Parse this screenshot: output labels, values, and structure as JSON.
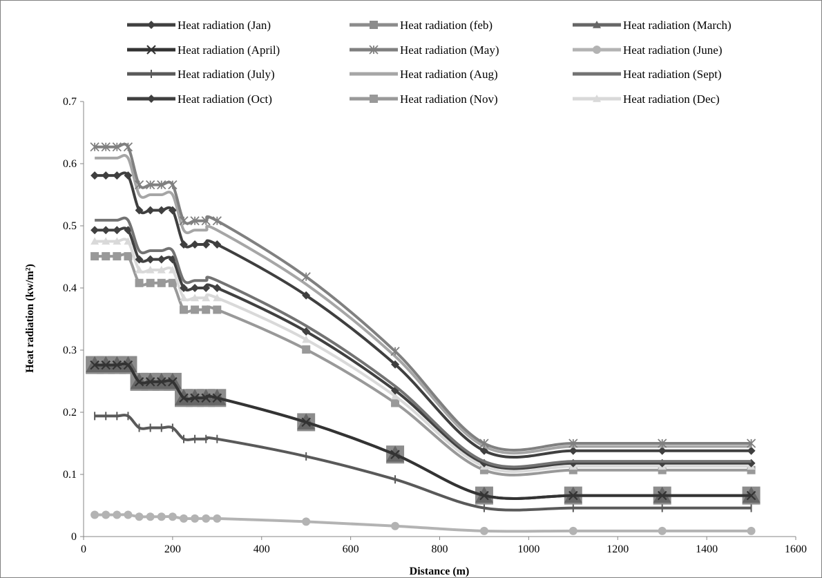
{
  "chart_data": {
    "type": "line",
    "title": "",
    "xlabel": "Distance (m)",
    "ylabel": "Heat radiation (kw/m²)",
    "xlim": [
      0,
      1600
    ],
    "ylim": [
      0,
      0.7
    ],
    "x_ticks": [
      0,
      200,
      400,
      600,
      800,
      1000,
      1200,
      1400,
      1600
    ],
    "y_ticks": [
      0,
      0.1,
      0.2,
      0.3,
      0.4,
      0.5,
      0.6,
      0.7
    ],
    "grid": false,
    "legend_position": "top",
    "x": [
      25,
      50,
      75,
      100,
      125,
      150,
      175,
      200,
      225,
      250,
      275,
      300,
      500,
      700,
      900,
      1100,
      1300,
      1500
    ],
    "series": [
      {
        "name": "Heat radiation (Jan)",
        "color": "#404040",
        "marker": "diamond",
        "values": [
          0.493,
          0.493,
          0.493,
          0.493,
          0.446,
          0.446,
          0.446,
          0.446,
          0.4,
          0.4,
          0.4,
          0.4,
          0.33,
          0.235,
          0.118,
          0.118,
          0.118,
          0.118
        ]
      },
      {
        "name": "Heat radiation (feb)",
        "color": "#8c8c8c",
        "marker": "square",
        "values": [
          0.276,
          0.276,
          0.276,
          0.276,
          0.249,
          0.249,
          0.249,
          0.249,
          0.223,
          0.223,
          0.223,
          0.223,
          0.184,
          0.132,
          0.066,
          0.066,
          0.066,
          0.066
        ]
      },
      {
        "name": "Heat radiation (March)",
        "color": "#666666",
        "marker": "triangle",
        "values": [
          0.276,
          0.276,
          0.276,
          0.276,
          0.249,
          0.249,
          0.249,
          0.249,
          0.223,
          0.223,
          0.223,
          0.223,
          0.184,
          0.132,
          0.066,
          0.066,
          0.066,
          0.066
        ]
      },
      {
        "name": "Heat radiation (April)",
        "color": "#333333",
        "marker": "x",
        "values": [
          0.276,
          0.276,
          0.276,
          0.276,
          0.249,
          0.249,
          0.249,
          0.249,
          0.223,
          0.223,
          0.223,
          0.223,
          0.184,
          0.132,
          0.066,
          0.066,
          0.066,
          0.066
        ]
      },
      {
        "name": "Heat radiation (May)",
        "color": "#808080",
        "marker": "star",
        "values": [
          0.627,
          0.627,
          0.627,
          0.627,
          0.566,
          0.566,
          0.566,
          0.566,
          0.508,
          0.508,
          0.508,
          0.508,
          0.418,
          0.298,
          0.15,
          0.15,
          0.15,
          0.15
        ]
      },
      {
        "name": "Heat radiation (June)",
        "color": "#b3b3b3",
        "marker": "circle",
        "values": [
          0.035,
          0.035,
          0.035,
          0.035,
          0.032,
          0.032,
          0.032,
          0.032,
          0.029,
          0.029,
          0.029,
          0.029,
          0.024,
          0.017,
          0.009,
          0.009,
          0.009,
          0.009
        ]
      },
      {
        "name": "Heat radiation (July)",
        "color": "#595959",
        "marker": "plus",
        "values": [
          0.194,
          0.194,
          0.194,
          0.194,
          0.175,
          0.175,
          0.175,
          0.175,
          0.157,
          0.157,
          0.157,
          0.157,
          0.129,
          0.092,
          0.046,
          0.046,
          0.046,
          0.046
        ]
      },
      {
        "name": "Heat radiation (Aug)",
        "color": "#a6a6a6",
        "marker": "none",
        "values": [
          0.609,
          0.609,
          0.609,
          0.609,
          0.55,
          0.55,
          0.55,
          0.55,
          0.493,
          0.493,
          0.493,
          0.493,
          0.406,
          0.29,
          0.145,
          0.145,
          0.145,
          0.145
        ]
      },
      {
        "name": "Heat radiation (Sept)",
        "color": "#737373",
        "marker": "none",
        "values": [
          0.509,
          0.509,
          0.509,
          0.509,
          0.46,
          0.46,
          0.46,
          0.46,
          0.412,
          0.412,
          0.412,
          0.412,
          0.339,
          0.242,
          0.121,
          0.121,
          0.121,
          0.121
        ]
      },
      {
        "name": "Heat radiation (Oct)",
        "color": "#3f3f3f",
        "marker": "diamond",
        "values": [
          0.581,
          0.581,
          0.581,
          0.581,
          0.525,
          0.525,
          0.525,
          0.525,
          0.47,
          0.47,
          0.47,
          0.47,
          0.388,
          0.277,
          0.138,
          0.138,
          0.138,
          0.138
        ]
      },
      {
        "name": "Heat radiation (Nov)",
        "color": "#999999",
        "marker": "square",
        "values": [
          0.451,
          0.451,
          0.451,
          0.451,
          0.408,
          0.408,
          0.408,
          0.408,
          0.365,
          0.365,
          0.365,
          0.365,
          0.301,
          0.215,
          0.107,
          0.107,
          0.107,
          0.107
        ]
      },
      {
        "name": "Heat radiation (Dec)",
        "color": "#d9d9d9",
        "marker": "triangle",
        "values": [
          0.475,
          0.475,
          0.475,
          0.475,
          0.429,
          0.429,
          0.429,
          0.429,
          0.384,
          0.384,
          0.384,
          0.384,
          0.317,
          0.226,
          0.113,
          0.113,
          0.113,
          0.113
        ]
      }
    ]
  }
}
